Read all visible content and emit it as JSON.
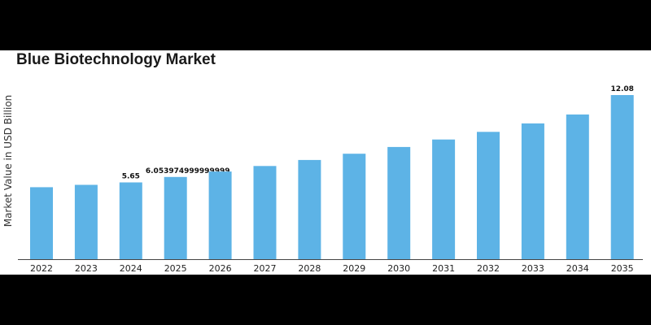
{
  "chart_data": {
    "type": "bar",
    "title": "Blue Biotechnology Market",
    "xlabel": "",
    "ylabel": "Market Value in USD Billion",
    "categories": [
      "2022",
      "2023",
      "2024",
      "2025",
      "2026",
      "2027",
      "2028",
      "2029",
      "2030",
      "2031",
      "2032",
      "2033",
      "2034",
      "2035"
    ],
    "values": [
      5.3,
      5.47,
      5.65,
      6.053974999999999,
      6.45,
      6.86,
      7.3,
      7.76,
      8.26,
      8.81,
      9.37,
      9.99,
      10.65,
      12.08
    ],
    "data_labels": {
      "2": "5.65",
      "3": "6.053974999999999",
      "13": "12.08"
    },
    "ylim": [
      0,
      12.08
    ],
    "grid": false,
    "legend": "none",
    "bar_color": "#5db3e6",
    "axis_color": "#444444"
  }
}
